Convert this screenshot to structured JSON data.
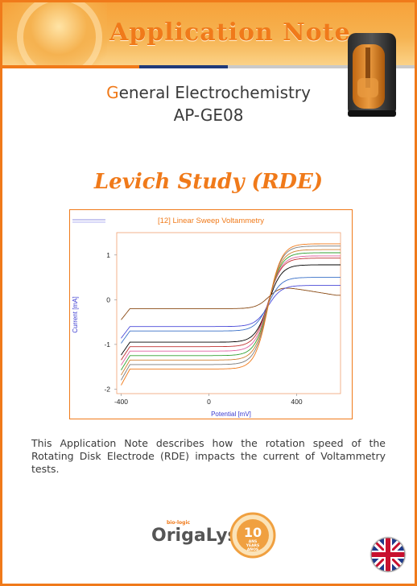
{
  "banner": {
    "title": "Application Note"
  },
  "header": {
    "subtitle_first_letter": "G",
    "subtitle_rest": "eneral Electrochemistry",
    "code": "AP-GE08"
  },
  "title": "Levich Study (RDE)",
  "chart_data": {
    "type": "line",
    "title": "[12] Linear Sweep Voltammetry",
    "xlabel": "Potential [mV]",
    "ylabel": "Current [mA]",
    "xlim": [
      -420,
      600
    ],
    "ylim": [
      -2.1,
      1.5
    ],
    "xticks": [
      "-400",
      "0",
      "400"
    ],
    "yticks": [
      "1",
      "0",
      "-1",
      "-2"
    ],
    "grid": false,
    "x_range_mV": [
      -400,
      600
    ],
    "half_wave_potential_mV": 270,
    "series": [
      {
        "color": "#8a4a14",
        "values_summary": {
          "cathodic_limit_mA": -0.2,
          "anodic_peak_mA": 0.3,
          "anodic_end_mA": 0.1
        }
      },
      {
        "color": "#4a4ad8",
        "values_summary": {
          "cathodic_limit_mA": -0.6,
          "anodic_limit_mA": 0.32
        }
      },
      {
        "color": "#3a70c8",
        "values_summary": {
          "cathodic_limit_mA": -0.7,
          "anodic_limit_mA": 0.5
        }
      },
      {
        "color": "#000000",
        "values_summary": {
          "cathodic_limit_mA": -0.95,
          "anodic_limit_mA": 0.78
        }
      },
      {
        "color": "#c03030",
        "values_summary": {
          "cathodic_limit_mA": -1.05,
          "anodic_limit_mA": 0.93
        }
      },
      {
        "color": "#e060a0",
        "values_summary": {
          "cathodic_limit_mA": -1.15,
          "anodic_limit_mA": 0.98
        }
      },
      {
        "color": "#30a030",
        "values_summary": {
          "cathodic_limit_mA": -1.25,
          "anodic_limit_mA": 1.05
        }
      },
      {
        "color": "#d08030",
        "values_summary": {
          "cathodic_limit_mA": -1.35,
          "anodic_limit_mA": 1.12
        }
      },
      {
        "color": "#7a7a7a",
        "values_summary": {
          "cathodic_limit_mA": -1.45,
          "anodic_limit_mA": 1.2
        }
      },
      {
        "color": "#f07a1a",
        "values_summary": {
          "cathodic_limit_mA": -1.55,
          "anodic_limit_mA": 1.25
        }
      }
    ]
  },
  "description": "This Application Note describes how the rotation speed of the Rotating Disk Electrode (RDE) impacts the current of Voltammetry tests.",
  "footer": {
    "logo_prefix": "bio-logic",
    "logo": "OrigaLys",
    "badge_number": "10",
    "badge_line1": "ANS",
    "badge_line2": "YEARS",
    "badge_line3": "AÑOS"
  },
  "colors": {
    "accent": "#f07a1a",
    "axis_label": "#3a3ad0"
  },
  "icons": {
    "flag": "uk-flag-icon",
    "device": "rotating-electrode-device",
    "badge": "anniversary-badge-icon"
  }
}
